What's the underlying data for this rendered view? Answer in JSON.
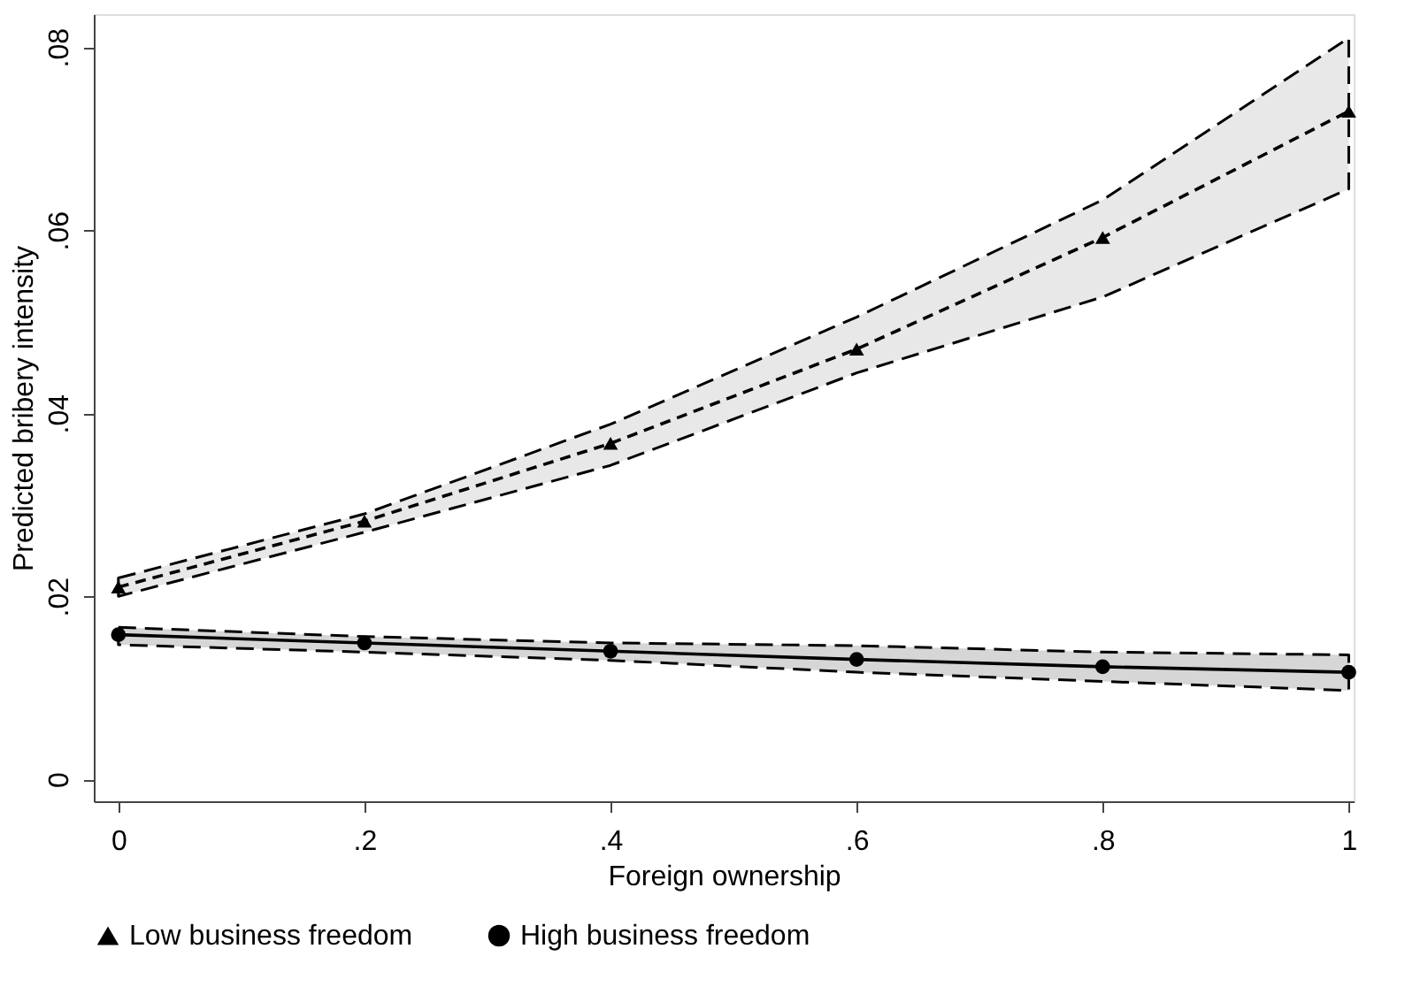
{
  "chart_data": {
    "type": "line",
    "xlabel": "Foreign ownership",
    "ylabel": "Predicted bribery intensity",
    "x": [
      0,
      0.2,
      0.4,
      0.6,
      0.8,
      1
    ],
    "xlim": [
      -0.02,
      1.004
    ],
    "ylim": [
      -0.0024,
      0.0836
    ],
    "xticks": [
      0,
      {
        "value": 0.2,
        "label": ".2"
      },
      {
        "value": 0.4,
        "label": ".4"
      },
      {
        "value": 0.6,
        "label": ".6"
      },
      {
        "value": 0.8,
        "label": ".8"
      },
      1
    ],
    "yticks": [
      0,
      {
        "value": 0.02,
        "label": ".02"
      },
      {
        "value": 0.04,
        "label": ".04"
      },
      {
        "value": 0.06,
        "label": ".06"
      },
      {
        "value": 0.08,
        "label": ".08"
      }
    ],
    "grid": false,
    "legend": "bottom",
    "series": [
      {
        "name": "Low business freedom",
        "color": "#000000",
        "marker": "triangle",
        "line_style": "dashed",
        "values": [
          0.021,
          0.0282,
          0.0367,
          0.047,
          0.0592,
          0.073
        ],
        "lower": [
          0.02,
          0.027,
          0.0343,
          0.0444,
          0.0527,
          0.0645
        ],
        "upper": [
          0.022,
          0.029,
          0.0388,
          0.0505,
          0.0633,
          0.081
        ]
      },
      {
        "name": "High business freedom",
        "color": "#000000",
        "marker": "circle",
        "line_style": "solid",
        "values": [
          0.0158,
          0.0149,
          0.014,
          0.0131,
          0.0123,
          0.0117
        ],
        "lower": [
          0.0147,
          0.0139,
          0.013,
          0.0117,
          0.0107,
          0.0097
        ],
        "upper": [
          0.0166,
          0.0156,
          0.0149,
          0.0146,
          0.0139,
          0.0136
        ]
      }
    ]
  }
}
